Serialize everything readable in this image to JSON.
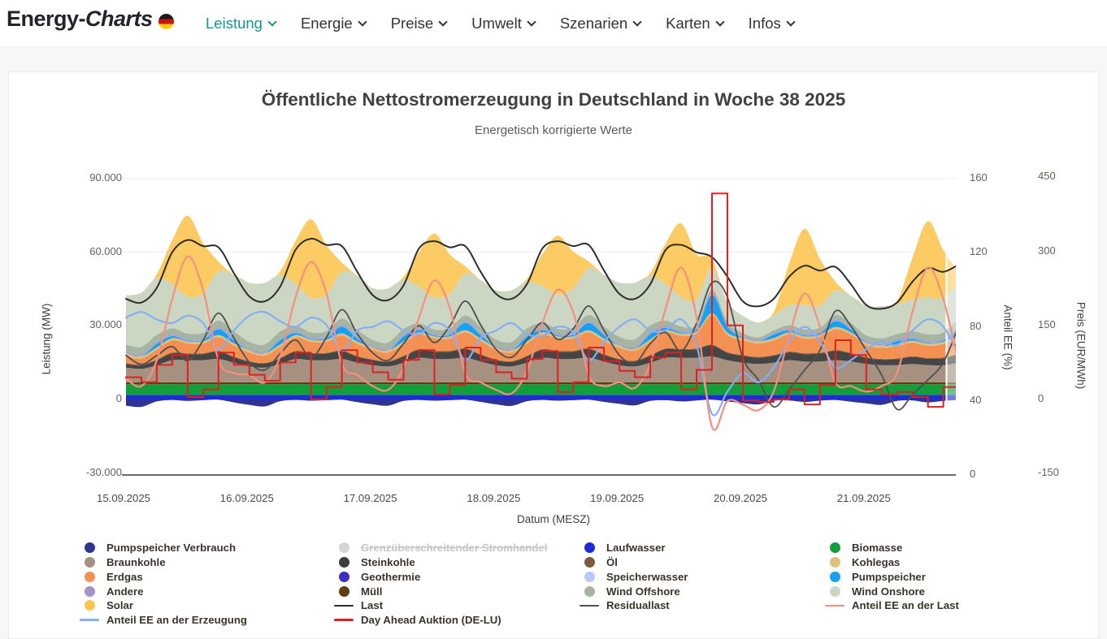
{
  "nav": {
    "brand": {
      "bold": "Energy-",
      "italic": "Charts"
    },
    "items": [
      {
        "label": "Leistung",
        "active": true
      },
      {
        "label": "Energie",
        "active": false
      },
      {
        "label": "Preise",
        "active": false
      },
      {
        "label": "Umwelt",
        "active": false
      },
      {
        "label": "Szenarien",
        "active": false
      },
      {
        "label": "Karten",
        "active": false
      },
      {
        "label": "Infos",
        "active": false
      }
    ]
  },
  "chart": {
    "title": "Öffentliche Nettostromerzeugung in Deutschland in Woche 38 2025",
    "subtitle": "Energetisch korrigierte Werte"
  },
  "legend": {
    "columns": [
      [
        {
          "label": "Pumpspeicher Verbrauch",
          "color": "#2f3490",
          "marker": "dot"
        },
        {
          "label": "Braunkohle",
          "color": "#a69180",
          "marker": "dot"
        },
        {
          "label": "Erdgas",
          "color": "#f39152",
          "marker": "dot"
        },
        {
          "label": "Andere",
          "color": "#a294c6",
          "marker": "dot"
        },
        {
          "label": "Solar",
          "color": "#fcc44f",
          "marker": "dot"
        },
        {
          "label": "Anteil EE an der Erzeugung",
          "color": "#85aff5",
          "marker": "line"
        }
      ],
      [
        {
          "label": "Grenzüberschreitender Stromhandel",
          "color": "#d5d5d5",
          "marker": "dot",
          "disabled": true
        },
        {
          "label": "Steinkohle",
          "color": "#3c3c3c",
          "marker": "dot"
        },
        {
          "label": "Geothermie",
          "color": "#3d2ec2",
          "marker": "dot"
        },
        {
          "label": "Müll",
          "color": "#5f3c12",
          "marker": "dot"
        },
        {
          "label": "Last",
          "color": "#2d2d2d",
          "marker": "line"
        },
        {
          "label": "Day Ahead Auktion (DE-LU)",
          "color": "#e02020",
          "marker": "line"
        }
      ],
      [
        {
          "label": "Laufwasser",
          "color": "#1f2bd4",
          "marker": "dot"
        },
        {
          "label": "Öl",
          "color": "#7d5a3c",
          "marker": "dot"
        },
        {
          "label": "Speicherwasser",
          "color": "#b8c8f8",
          "marker": "dot"
        },
        {
          "label": "Wind Offshore",
          "color": "#a6b5a2",
          "marker": "dot"
        },
        {
          "label": "Residuallast",
          "color": "#4f4f4f",
          "marker": "line"
        }
      ],
      [
        {
          "label": "Biomasse",
          "color": "#129e38",
          "marker": "dot"
        },
        {
          "label": "Kohlegas",
          "color": "#ddc07e",
          "marker": "dot"
        },
        {
          "label": "Pumpspeicher",
          "color": "#18a0f0",
          "marker": "dot"
        },
        {
          "label": "Wind Onshore",
          "color": "#cbd6c3",
          "marker": "dot"
        },
        {
          "label": "Anteil EE an der Last",
          "color": "#f5907e",
          "marker": "line"
        }
      ]
    ]
  },
  "chart_data": {
    "type": "area",
    "title": "Öffentliche Nettostromerzeugung in Deutschland in Woche 38 2025",
    "subtitle": "Energetisch korrigierte Werte",
    "x_start": "2025-09-15 00:00 MESZ",
    "x_step_hours": 3,
    "n_points": 55,
    "unit": "MW",
    "axis_ranges": {
      "mw": [
        -30000,
        90000
      ],
      "share_percent": [
        0,
        160
      ],
      "price_eur_mwh": [
        -150,
        450
      ]
    },
    "axes": {
      "left": {
        "label": "Leistung (MW)",
        "ticks": [
          {
            "label": "90.000",
            "value": 90000
          },
          {
            "label": "60.000",
            "value": 60000
          },
          {
            "label": "30.000",
            "value": 30000
          },
          {
            "label": "0",
            "value": 0
          },
          {
            "label": "-30.000",
            "value": -30000
          }
        ]
      },
      "right_share": {
        "label": "Anteil EE (%)",
        "ticks": [
          {
            "label": "160",
            "value": 160
          },
          {
            "label": "120",
            "value": 120
          },
          {
            "label": "80",
            "value": 80
          },
          {
            "label": "40",
            "value": 40
          },
          {
            "label": "0",
            "value": 0
          }
        ]
      },
      "right_price": {
        "label": "Preis (EUR/MWh)",
        "ticks": [
          {
            "label": "450",
            "value": 450
          },
          {
            "label": "300",
            "value": 300
          },
          {
            "label": "150",
            "value": 150
          },
          {
            "label": "0",
            "value": 0
          },
          {
            "label": "-150",
            "value": -150
          }
        ]
      },
      "x": {
        "label": "Datum (MESZ)",
        "ticks": [
          "15.09.2025",
          "16.09.2025",
          "17.09.2025",
          "18.09.2025",
          "19.09.2025",
          "20.09.2025",
          "21.09.2025"
        ]
      }
    },
    "disabled_series": [
      "Grenzüberschreitender Stromhandel"
    ],
    "stack_order": [
      "laufwasser",
      "biomasse",
      "muell",
      "braunkohle",
      "steinkohle",
      "oel",
      "erdgas",
      "kohlegas",
      "geothermie",
      "pumpspeicher",
      "speicherwasser",
      "andere",
      "wind_offshore",
      "wind_onshore",
      "solar"
    ],
    "areas": {
      "laufwasser": {
        "label": "Laufwasser",
        "color": "#1f2bd4",
        "values": 1900
      },
      "biomasse": {
        "label": "Biomasse",
        "color": "#129e38",
        "values": 4300
      },
      "muell": {
        "label": "Müll",
        "color": "#5f3c12",
        "values": 800
      },
      "braunkohle": {
        "label": "Braunkohle",
        "color": "#a69180",
        "values": [
          6000,
          5500,
          7000,
          9000,
          9000,
          9000,
          9500,
          8000,
          6500,
          6000,
          7500,
          9500,
          9000,
          9000,
          9500,
          8000,
          7000,
          6500,
          8000,
          10000,
          9500,
          9500,
          10000,
          8500,
          7000,
          6500,
          8000,
          10000,
          9500,
          9500,
          10000,
          8500,
          7000,
          6500,
          8000,
          10000,
          10000,
          10000,
          10500,
          9000,
          8000,
          7500,
          8000,
          9000,
          8500,
          8500,
          9000,
          8500,
          7500,
          7000,
          7000,
          7500,
          7000,
          7000,
          8000
        ]
      },
      "steinkohle": {
        "label": "Steinkohle",
        "color": "#454545",
        "values": [
          1500,
          1400,
          2000,
          2800,
          2500,
          2500,
          3000,
          2200,
          1800,
          1600,
          2200,
          3000,
          2700,
          2700,
          3200,
          2400,
          2000,
          1800,
          2500,
          3200,
          3000,
          3000,
          3500,
          2600,
          2000,
          1800,
          2500,
          3200,
          3000,
          3000,
          3500,
          2600,
          2200,
          2000,
          2800,
          3500,
          3200,
          3500,
          4500,
          3000,
          2800,
          2500,
          2800,
          3200,
          3000,
          3200,
          3800,
          3200,
          2400,
          2200,
          2400,
          2800,
          2600,
          2800,
          3400
        ]
      },
      "oel": {
        "label": "Öl",
        "color": "#7d5a3c",
        "values": 300
      },
      "erdgas": {
        "label": "Erdgas",
        "color": "#f39152",
        "values": [
          3000,
          2500,
          4000,
          5000,
          4000,
          4000,
          5500,
          4500,
          3500,
          3000,
          4500,
          5500,
          4500,
          4500,
          6000,
          5000,
          4000,
          3500,
          5000,
          6000,
          5000,
          5000,
          6500,
          5500,
          4000,
          3500,
          5000,
          6000,
          5000,
          5000,
          6500,
          5500,
          4500,
          4000,
          5500,
          6500,
          5500,
          6000,
          12000,
          7000,
          6000,
          5500,
          6000,
          7000,
          6000,
          6500,
          8500,
          7500,
          5000,
          4500,
          5000,
          5500,
          5000,
          5500,
          7000
        ]
      },
      "kohlegas": {
        "label": "Kohlegas",
        "color": "#ddc07e",
        "values": 900
      },
      "geothermie": {
        "label": "Geothermie",
        "color": "#3d2ec2",
        "values": 30
      },
      "pumpspeicher": {
        "label": "Pumpspeicher",
        "color": "#18a0f0",
        "values": [
          0,
          0,
          1500,
          800,
          300,
          500,
          2500,
          1200,
          0,
          0,
          1800,
          900,
          300,
          600,
          2800,
          1300,
          0,
          0,
          2000,
          1000,
          400,
          700,
          3000,
          1500,
          0,
          0,
          2000,
          1000,
          400,
          700,
          3000,
          1500,
          0,
          0,
          2200,
          1100,
          400,
          800,
          7500,
          2500,
          200,
          0,
          1500,
          800,
          400,
          600,
          2500,
          1200,
          200,
          0,
          1200,
          700,
          300,
          600,
          3000
        ]
      },
      "speicherwasser": {
        "label": "Speicherwasser",
        "color": "#b8c8f8",
        "values": 150
      },
      "andere": {
        "label": "Andere",
        "color": "#a294c6",
        "values": 500
      },
      "wind_offshore": {
        "label": "Wind Offshore",
        "color": "#a6b5a2",
        "values": [
          3000,
          3200,
          3000,
          2500,
          2200,
          2400,
          2800,
          3000,
          2800,
          3000,
          2800,
          2300,
          2000,
          2200,
          2600,
          2800,
          2500,
          2600,
          2400,
          2000,
          1800,
          2000,
          2400,
          2600,
          2600,
          2800,
          2600,
          2200,
          2000,
          2200,
          2600,
          2800,
          3000,
          3200,
          2800,
          2200,
          1800,
          1500,
          1400,
          1300,
          1200,
          1000,
          1000,
          1400,
          1800,
          1600,
          1800,
          2000,
          2200,
          2400,
          2200,
          2400,
          2800,
          2600,
          2800
        ]
      },
      "wind_onshore": {
        "label": "Wind Onshore",
        "color": "#cbd6c3",
        "values": [
          20000,
          22000,
          23000,
          18000,
          15000,
          16000,
          20000,
          23000,
          24000,
          25000,
          23000,
          17000,
          14000,
          15000,
          19000,
          22000,
          21000,
          22000,
          20000,
          15000,
          13000,
          14000,
          17000,
          19000,
          20000,
          21000,
          19000,
          15000,
          14000,
          16000,
          19000,
          21000,
          22000,
          23000,
          20000,
          15000,
          12000,
          10000,
          9000,
          8000,
          7000,
          6000,
          6000,
          8000,
          10000,
          9000,
          10000,
          11000,
          12000,
          13000,
          12000,
          13000,
          15000,
          14000,
          15000
        ]
      },
      "solar": {
        "label": "Solar",
        "color": "#fcc44f",
        "opacity": 0.88,
        "values": [
          0,
          0,
          1600,
          18000,
          33000,
          20500,
          4000,
          0,
          0,
          0,
          1500,
          17500,
          32000,
          20000,
          3800,
          0,
          0,
          0,
          1300,
          14000,
          26000,
          16000,
          3000,
          0,
          0,
          0,
          1200,
          13000,
          24000,
          15000,
          2800,
          0,
          0,
          0,
          1400,
          16500,
          30000,
          18500,
          3500,
          0,
          0,
          0,
          1400,
          17000,
          31000,
          19000,
          3600,
          0,
          0,
          0,
          1400,
          17000,
          31000,
          19500,
          3700
        ]
      }
    },
    "negative_areas": {
      "pumpspeicher_verbrauch": {
        "label": "Pumpspeicher Verbrauch",
        "color": "#2f3490",
        "values": [
          -2500,
          -3000,
          -800,
          -200,
          -600,
          -300,
          -100,
          -1200,
          -2200,
          -2800,
          -700,
          -200,
          -500,
          -300,
          -100,
          -1100,
          -2000,
          -2500,
          -600,
          -200,
          -500,
          -300,
          -100,
          -1000,
          -2000,
          -2600,
          -700,
          -200,
          -500,
          -300,
          -100,
          -1000,
          -1800,
          -2400,
          -600,
          -300,
          -800,
          -400,
          -100,
          -800,
          -1500,
          -2000,
          -500,
          -400,
          -1000,
          -500,
          -200,
          -900,
          -1600,
          -2200,
          -600,
          -400,
          -1200,
          -600,
          -200
        ]
      }
    },
    "lines": {
      "residuallast": {
        "label": "Residuallast",
        "axis": "mw",
        "color": "#4f4f4f",
        "width": 1.8,
        "values": [
          18000,
          14300,
          17900,
          21500,
          15800,
          24100,
          35200,
          25000,
          15200,
          12000,
          18700,
          24200,
          17000,
          25300,
          36600,
          26700,
          19000,
          15900,
          22800,
          30000,
          23200,
          30000,
          40100,
          30400,
          20400,
          17200,
          24200,
          31300,
          24500,
          28800,
          38100,
          28200,
          18000,
          14800,
          22800,
          27300,
          19700,
          31000,
          47600,
          41700,
          17000,
          8000,
          -3000,
          4000,
          12000,
          20000,
          36000,
          30000,
          20000,
          10000,
          -4000,
          2000,
          8000,
          15000,
          30000
        ]
      },
      "last": {
        "label": "Last",
        "axis": "mw",
        "color": "#2d2d2d",
        "width": 2,
        "values": [
          41000,
          39500,
          45500,
          60000,
          65000,
          62500,
          62000,
          51500,
          42000,
          40000,
          46000,
          61000,
          65500,
          63000,
          62500,
          52000,
          42500,
          40500,
          46500,
          61500,
          64500,
          62000,
          62500,
          52000,
          43000,
          41000,
          47000,
          61500,
          64500,
          62500,
          63000,
          52500,
          43000,
          41000,
          47000,
          61000,
          63000,
          60000,
          58000,
          50000,
          40000,
          38000,
          41000,
          50000,
          54500,
          52500,
          54000,
          47000,
          38500,
          37000,
          39500,
          48000,
          53500,
          52000,
          55000
        ]
      },
      "anteil_ee_erzeugung": {
        "label": "Anteil EE an der Erzeugung",
        "axis": "share",
        "color": "#85aff5",
        "width": 2.2,
        "values": [
          85,
          88,
          84,
          82,
          86,
          82,
          68,
          78,
          86,
          88,
          83,
          80,
          85,
          81,
          67,
          78,
          80,
          83,
          78,
          76,
          82,
          78,
          62,
          74,
          78,
          82,
          76,
          75,
          80,
          77,
          62,
          72,
          80,
          84,
          78,
          78,
          84,
          70,
          33,
          45,
          55,
          50,
          58,
          72,
          80,
          72,
          58,
          62,
          68,
          72,
          70,
          78,
          84,
          80,
          65
        ]
      },
      "anteil_ee_last": {
        "label": "Anteil EE an der Last",
        "axis": "share",
        "color": "#f5907e",
        "width": 2.2,
        "values": [
          52,
          48,
          62,
          95,
          118,
          100,
          62,
          55,
          54,
          50,
          64,
          96,
          115,
          98,
          60,
          54,
          48,
          46,
          58,
          85,
          105,
          90,
          55,
          50,
          46,
          44,
          56,
          82,
          100,
          88,
          54,
          48,
          50,
          47,
          60,
          90,
          112,
          85,
          26,
          40,
          38,
          35,
          45,
          75,
          98,
          80,
          50,
          48,
          45,
          48,
          55,
          88,
          112,
          95,
          60
        ]
      },
      "day_ahead": {
        "label": "Day Ahead Auktion (DE-LU)",
        "axis": "price",
        "color": "#e02020",
        "width": 2,
        "step": true,
        "values": [
          45,
          35,
          70,
          90,
          5,
          20,
          95,
          70,
          50,
          38,
          75,
          95,
          0,
          25,
          100,
          75,
          55,
          40,
          80,
          100,
          10,
          30,
          105,
          80,
          55,
          42,
          82,
          98,
          15,
          35,
          105,
          78,
          58,
          45,
          85,
          95,
          20,
          60,
          417,
          150,
          -2,
          -5,
          0,
          20,
          -10,
          30,
          120,
          90,
          20,
          10,
          15,
          5,
          -15,
          25,
          110
        ]
      }
    }
  }
}
